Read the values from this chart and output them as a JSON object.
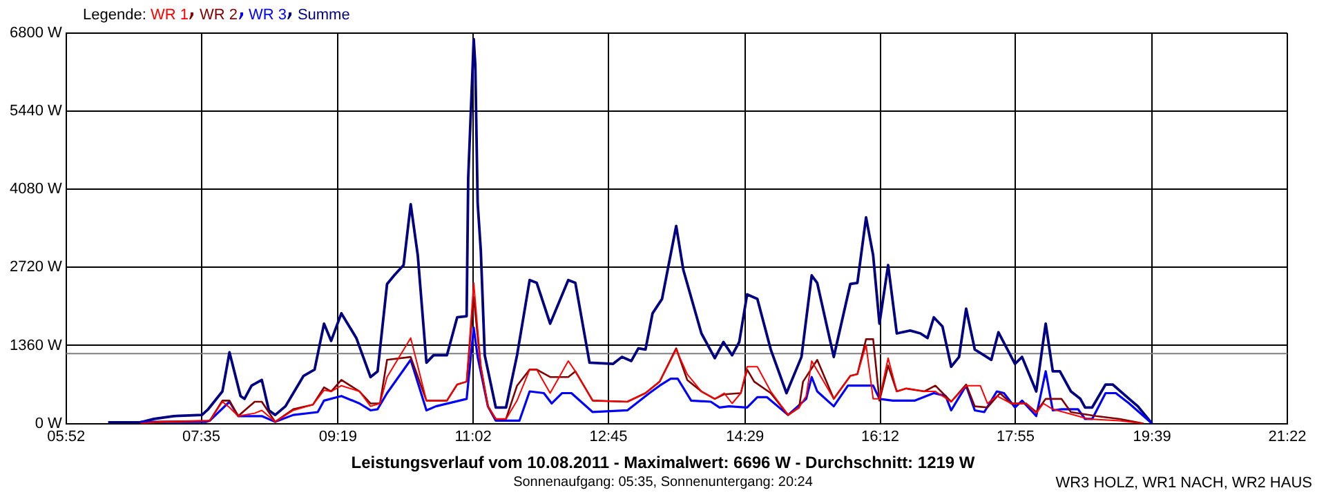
{
  "chart_data": {
    "type": "line",
    "title": "Leistungsverlauf vom 10.08.2011 - Maximalwert: 6696 W - Durchschnitt: 1219 W",
    "subtitle": "Sonnenaufgang: 05:35, Sonnenuntergang: 20:24",
    "annotations": [
      "WR3 HOLZ, WR1 NACH, WR2 HAUS"
    ],
    "legend_title": "Legende:",
    "legend": "top left",
    "grid": true,
    "xlim": [
      5.867,
      21.367
    ],
    "xticks": [
      {
        "value": 5.867,
        "label": "05:52"
      },
      {
        "value": 7.583,
        "label": "07:35"
      },
      {
        "value": 9.317,
        "label": "09:19"
      },
      {
        "value": 11.033,
        "label": "11:02"
      },
      {
        "value": 12.75,
        "label": "12:45"
      },
      {
        "value": 14.483,
        "label": "14:29"
      },
      {
        "value": 16.2,
        "label": "16:12"
      },
      {
        "value": 17.917,
        "label": "17:55"
      },
      {
        "value": 19.65,
        "label": "19:39"
      },
      {
        "value": 21.367,
        "label": "21:22"
      }
    ],
    "ylim": [
      0,
      6800
    ],
    "yticks": [
      {
        "value": 0,
        "label": "0 W"
      },
      {
        "value": 1360,
        "label": "1360 W"
      },
      {
        "value": 2720,
        "label": "2720 W"
      },
      {
        "value": 4080,
        "label": "4080 W"
      },
      {
        "value": 5440,
        "label": "5440 W"
      },
      {
        "value": 6800,
        "label": "6800 W"
      }
    ],
    "ref_lines": [
      {
        "axis": "y",
        "value": 1219,
        "color": "#808080"
      }
    ],
    "series": [
      {
        "name": "WR 1",
        "color": "#ff0000",
        "x": [
          6.81,
          7.05,
          7.69,
          7.85,
          7.94,
          8.05,
          8.26,
          8.35,
          8.52,
          8.75,
          9.0,
          9.14,
          9.23,
          9.36,
          9.59,
          9.73,
          9.85,
          9.94,
          10.24,
          10.44,
          10.7,
          10.83,
          10.95,
          11.04,
          11.13,
          11.22,
          11.32,
          11.45,
          11.59,
          11.75,
          11.84,
          12.01,
          12.24,
          12.33,
          12.55,
          12.99,
          13.22,
          13.4,
          13.61,
          13.75,
          13.93,
          14.1,
          14.22,
          14.32,
          14.43,
          14.51,
          14.64,
          14.81,
          15.03,
          15.17,
          15.26,
          15.33,
          15.61,
          15.82,
          15.91,
          16.02,
          16.11,
          16.19,
          16.3,
          16.41,
          16.53,
          16.76,
          16.9,
          17.1,
          17.29,
          17.47,
          17.56,
          17.68,
          17.86,
          18.05,
          18.18,
          18.27,
          18.39,
          18.71,
          18.84,
          19.24,
          19.54
        ],
        "values": [
          0,
          30,
          50,
          380,
          280,
          130,
          180,
          230,
          30,
          230,
          330,
          580,
          560,
          660,
          560,
          300,
          350,
          810,
          1490,
          400,
          400,
          680,
          730,
          2450,
          990,
          300,
          80,
          80,
          400,
          940,
          940,
          530,
          1090,
          910,
          400,
          380,
          530,
          730,
          1290,
          860,
          560,
          430,
          530,
          350,
          530,
          990,
          990,
          560,
          150,
          280,
          480,
          1090,
          430,
          830,
          860,
          1370,
          430,
          430,
          1140,
          560,
          610,
          560,
          560,
          380,
          660,
          660,
          350,
          480,
          350,
          350,
          180,
          350,
          250,
          130,
          80,
          50,
          0
        ]
      },
      {
        "name": "WR 2",
        "color": "#800000",
        "x": [
          6.81,
          7.05,
          7.69,
          7.85,
          7.94,
          8.05,
          8.26,
          8.35,
          8.52,
          8.75,
          9.0,
          9.14,
          9.23,
          9.36,
          9.59,
          9.73,
          9.85,
          9.94,
          10.24,
          10.44,
          10.7,
          10.83,
          10.95,
          11.04,
          11.13,
          11.22,
          11.32,
          11.45,
          11.59,
          11.75,
          11.84,
          12.01,
          12.24,
          12.33,
          12.55,
          12.99,
          13.22,
          13.4,
          13.61,
          13.75,
          13.93,
          14.1,
          14.22,
          14.43,
          14.51,
          14.6,
          14.81,
          15.03,
          15.17,
          15.22,
          15.4,
          15.61,
          15.82,
          15.91,
          16.02,
          16.11,
          16.19,
          16.3,
          16.41,
          16.53,
          16.76,
          16.9,
          17.1,
          17.29,
          17.4,
          17.56,
          17.72,
          17.86,
          18.05,
          18.18,
          18.3,
          18.5,
          18.62,
          18.94,
          19.24,
          19.54
        ],
        "values": [
          0,
          30,
          50,
          400,
          400,
          130,
          380,
          380,
          30,
          250,
          330,
          630,
          560,
          760,
          560,
          350,
          350,
          1110,
          1160,
          400,
          400,
          680,
          730,
          2200,
          990,
          300,
          80,
          80,
          660,
          940,
          940,
          810,
          810,
          910,
          400,
          380,
          530,
          730,
          1310,
          760,
          560,
          430,
          510,
          530,
          940,
          730,
          530,
          150,
          280,
          730,
          1110,
          430,
          830,
          860,
          1470,
          1470,
          400,
          1010,
          560,
          610,
          560,
          660,
          380,
          680,
          300,
          280,
          530,
          350,
          350,
          200,
          430,
          430,
          200,
          130,
          80,
          0
        ]
      },
      {
        "name": "WR 3",
        "color": "#0000ff",
        "x": [
          6.81,
          7.64,
          7.69,
          7.94,
          8.05,
          8.35,
          8.52,
          8.75,
          9.06,
          9.14,
          9.36,
          9.59,
          9.73,
          9.82,
          9.94,
          10.24,
          10.44,
          10.56,
          10.95,
          11.04,
          11.09,
          11.22,
          11.32,
          11.62,
          11.75,
          11.93,
          12.03,
          12.16,
          12.28,
          12.55,
          12.99,
          13.27,
          13.4,
          13.54,
          13.63,
          13.8,
          14.05,
          14.16,
          14.28,
          14.51,
          14.64,
          14.76,
          15.03,
          15.26,
          15.33,
          15.4,
          15.61,
          15.79,
          16.11,
          16.19,
          16.36,
          16.64,
          16.88,
          17.03,
          17.1,
          17.29,
          17.4,
          17.52,
          17.68,
          17.77,
          17.91,
          18.0,
          18.18,
          18.3,
          18.39,
          18.5,
          18.71,
          18.8,
          18.89,
          19.06,
          19.19,
          19.36,
          19.65
        ],
        "values": [
          30,
          30,
          50,
          380,
          130,
          130,
          30,
          150,
          200,
          400,
          480,
          350,
          230,
          250,
          530,
          1110,
          230,
          300,
          430,
          1670,
          1160,
          300,
          50,
          50,
          560,
          530,
          350,
          530,
          530,
          200,
          230,
          530,
          660,
          780,
          780,
          400,
          380,
          280,
          300,
          280,
          460,
          460,
          150,
          430,
          810,
          560,
          300,
          660,
          660,
          430,
          400,
          400,
          530,
          480,
          230,
          660,
          230,
          200,
          560,
          530,
          280,
          400,
          130,
          910,
          230,
          250,
          250,
          80,
          80,
          530,
          530,
          350,
          0
        ]
      },
      {
        "name": "Summe",
        "color": "#000080",
        "x": [
          6.4,
          6.61,
          6.81,
          6.98,
          7.23,
          7.59,
          7.67,
          7.85,
          7.94,
          8.08,
          8.13,
          8.22,
          8.35,
          8.44,
          8.52,
          8.65,
          8.75,
          8.88,
          9.02,
          9.14,
          9.23,
          9.36,
          9.55,
          9.73,
          9.82,
          9.94,
          10.03,
          10.15,
          10.24,
          10.33,
          10.44,
          10.53,
          10.7,
          10.83,
          10.95,
          10.97,
          11.04,
          11.06,
          11.09,
          11.13,
          11.18,
          11.32,
          11.45,
          11.59,
          11.75,
          11.84,
          12.01,
          12.24,
          12.33,
          12.51,
          12.81,
          12.92,
          13.04,
          13.13,
          13.22,
          13.31,
          13.43,
          13.61,
          13.7,
          13.93,
          14.1,
          14.21,
          14.32,
          14.41,
          14.51,
          14.64,
          14.81,
          15.01,
          15.2,
          15.33,
          15.4,
          15.61,
          15.82,
          15.91,
          16.02,
          16.11,
          16.19,
          16.3,
          16.41,
          16.58,
          16.71,
          16.8,
          16.88,
          16.99,
          17.1,
          17.2,
          17.29,
          17.4,
          17.61,
          17.7,
          17.91,
          18.0,
          18.18,
          18.3,
          18.39,
          18.48,
          18.62,
          18.74,
          18.8,
          18.89,
          19.06,
          19.15,
          19.36,
          19.47,
          19.65
        ],
        "values": [
          20,
          20,
          20,
          80,
          130,
          150,
          250,
          560,
          1240,
          480,
          430,
          660,
          760,
          230,
          150,
          300,
          530,
          830,
          940,
          1740,
          1440,
          1920,
          1490,
          810,
          910,
          2430,
          2580,
          2760,
          3820,
          2930,
          1060,
          1190,
          1190,
          1850,
          1870,
          4270,
          6696,
          6240,
          3840,
          3010,
          1190,
          280,
          280,
          1190,
          2500,
          2450,
          1740,
          2500,
          2450,
          1060,
          1040,
          1160,
          1090,
          1310,
          1290,
          1920,
          2170,
          3440,
          2680,
          1570,
          1140,
          1420,
          1190,
          1420,
          2250,
          2170,
          1290,
          530,
          1160,
          2580,
          2450,
          1160,
          2430,
          2450,
          3590,
          2930,
          1740,
          2760,
          1570,
          1620,
          1570,
          1490,
          1850,
          1690,
          990,
          1160,
          2000,
          1290,
          1110,
          1590,
          1040,
          1160,
          560,
          1740,
          910,
          910,
          560,
          430,
          280,
          280,
          680,
          680,
          430,
          300,
          0
        ]
      }
    ]
  }
}
